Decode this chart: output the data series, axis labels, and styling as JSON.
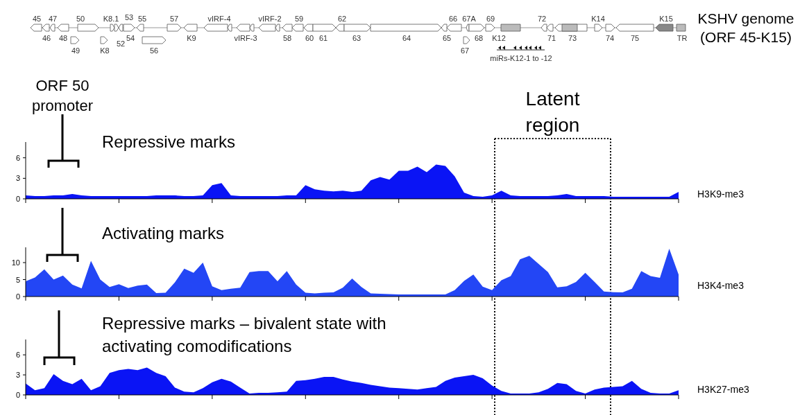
{
  "chart_data": [
    {
      "type": "other",
      "title": "KSHV genome (ORF 45-K15)",
      "annotations": [
        "45",
        "47",
        "50",
        "K8.1",
        "53",
        "55",
        "57",
        "vIRF-4",
        "vIRF-2",
        "59",
        "62",
        "66",
        "67A",
        "69",
        "72",
        "K14",
        "K15",
        "46",
        "48",
        "54",
        "K9",
        "vIRF-3",
        "58",
        "60",
        "61",
        "63",
        "64",
        "65",
        "68",
        "K12",
        "71",
        "73",
        "74",
        "75",
        "TR",
        "49",
        "K8",
        "56",
        "52",
        "67",
        "miRs-K12-1 to -12"
      ]
    },
    {
      "type": "area",
      "title": "Repressive marks",
      "annotations": [
        "ORF 50 promoter",
        "Latent region"
      ],
      "categories": [
        null,
        null,
        null,
        null,
        null,
        null,
        null,
        null,
        null,
        null,
        null,
        null,
        null,
        null,
        null,
        null,
        null,
        null,
        null,
        null,
        null,
        null,
        null,
        null,
        null,
        null,
        null,
        null,
        null,
        null,
        null,
        null,
        null,
        null,
        null,
        null,
        null,
        null,
        null,
        null,
        null,
        null,
        null,
        null,
        null,
        null,
        null,
        null,
        null,
        null,
        null,
        null,
        null,
        null,
        null,
        null,
        null,
        null,
        null,
        null,
        null,
        null,
        null,
        null,
        null,
        null,
        null,
        null,
        null,
        null,
        null
      ],
      "ylim": [
        0,
        8.3
      ],
      "yticks": [
        0,
        3,
        6
      ],
      "tick_labels": "y",
      "series": [
        {
          "name": "H3K9-me3",
          "color": "#0a14f5",
          "values": [
            0.5,
            0.4,
            0.4,
            0.5,
            0.5,
            0.7,
            0.5,
            0.4,
            0.4,
            0.4,
            0.4,
            0.4,
            0.4,
            0.4,
            0.5,
            0.5,
            0.5,
            0.4,
            0.4,
            0.5,
            2.0,
            2.3,
            0.5,
            0.4,
            0.4,
            0.4,
            0.4,
            0.4,
            0.5,
            0.5,
            2.0,
            1.4,
            1.2,
            1.1,
            1.2,
            1.0,
            1.2,
            2.7,
            3.2,
            2.8,
            4.1,
            4.1,
            4.7,
            3.9,
            5.0,
            4.8,
            3.3,
            0.9,
            0.4,
            0.3,
            0.5,
            1.2,
            0.5,
            0.4,
            0.4,
            0.4,
            0.4,
            0.5,
            0.7,
            0.4,
            0.4,
            0.4,
            0.4,
            0.3,
            0.3,
            0.3,
            0.3,
            0.3,
            0.3,
            0.3,
            1.0
          ]
        }
      ]
    },
    {
      "type": "area",
      "title": "Activating marks",
      "categories": [
        null,
        null,
        null,
        null,
        null,
        null,
        null,
        null,
        null,
        null,
        null,
        null,
        null,
        null,
        null,
        null,
        null,
        null,
        null,
        null,
        null,
        null,
        null,
        null,
        null,
        null,
        null,
        null,
        null,
        null,
        null,
        null,
        null,
        null,
        null,
        null,
        null,
        null,
        null,
        null,
        null,
        null,
        null,
        null,
        null,
        null,
        null,
        null,
        null,
        null,
        null,
        null,
        null,
        null,
        null,
        null,
        null,
        null,
        null,
        null,
        null,
        null,
        null,
        null,
        null,
        null,
        null,
        null,
        null,
        null,
        null
      ],
      "ylim": [
        0,
        14.5
      ],
      "yticks": [
        0,
        5,
        10
      ],
      "tick_labels": "y",
      "series": [
        {
          "name": "H3K4-me3",
          "color": "#2346f5",
          "values": [
            4.5,
            5.6,
            8.0,
            5.0,
            6.2,
            3.5,
            2.4,
            10.5,
            5.0,
            2.8,
            3.6,
            2.5,
            3.2,
            3.5,
            1.0,
            1.1,
            4.2,
            8.2,
            7.0,
            10.0,
            3.0,
            1.9,
            2.3,
            2.6,
            7.2,
            7.5,
            7.5,
            4.5,
            7.5,
            3.5,
            1.1,
            0.9,
            1.1,
            1.2,
            2.6,
            5.3,
            2.8,
            0.9,
            0.8,
            0.7,
            0.6,
            0.6,
            0.6,
            0.6,
            0.6,
            0.6,
            1.9,
            4.6,
            6.5,
            2.9,
            1.9,
            4.8,
            6.0,
            11.0,
            12.0,
            9.6,
            7.2,
            2.7,
            3.0,
            4.3,
            7.0,
            4.3,
            1.5,
            1.3,
            1.2,
            2.3,
            7.5,
            6.0,
            5.5,
            14.1,
            6.5
          ]
        }
      ]
    },
    {
      "type": "area",
      "title": "Repressive marks – bivalent state with activating comodifications",
      "categories": [
        null,
        null,
        null,
        null,
        null,
        null,
        null,
        null,
        null,
        null,
        null,
        null,
        null,
        null,
        null,
        null,
        null,
        null,
        null,
        null,
        null,
        null,
        null,
        null,
        null,
        null,
        null,
        null,
        null,
        null,
        null,
        null,
        null,
        null,
        null,
        null,
        null,
        null,
        null,
        null,
        null,
        null,
        null,
        null,
        null,
        null,
        null,
        null,
        null,
        null,
        null,
        null,
        null,
        null,
        null,
        null,
        null,
        null,
        null,
        null,
        null,
        null,
        null,
        null,
        null,
        null,
        null,
        null,
        null,
        null,
        null
      ],
      "ylim": [
        0,
        8.3
      ],
      "yticks": [
        0,
        3,
        6
      ],
      "tick_labels": "y",
      "series": [
        {
          "name": "H3K27-me3",
          "color": "#0a14f5",
          "values": [
            1.7,
            0.7,
            1.0,
            3.1,
            2.1,
            1.6,
            2.4,
            0.7,
            1.3,
            3.3,
            3.7,
            3.9,
            3.7,
            4.1,
            3.3,
            2.8,
            1.1,
            0.5,
            0.4,
            1.0,
            1.9,
            2.4,
            2.0,
            1.1,
            0.2,
            0.3,
            0.3,
            0.4,
            0.5,
            2.1,
            2.2,
            2.4,
            2.7,
            2.7,
            2.3,
            2.0,
            1.8,
            1.5,
            1.3,
            1.1,
            1.0,
            0.9,
            0.8,
            1.0,
            1.2,
            2.1,
            2.6,
            2.8,
            3.0,
            2.5,
            1.4,
            0.6,
            0.2,
            0.2,
            0.2,
            0.4,
            0.9,
            1.8,
            1.6,
            0.6,
            0.2,
            0.8,
            1.1,
            1.2,
            1.3,
            2.1,
            0.9,
            0.3,
            0.2,
            0.2,
            0.7
          ]
        }
      ]
    }
  ]
}
